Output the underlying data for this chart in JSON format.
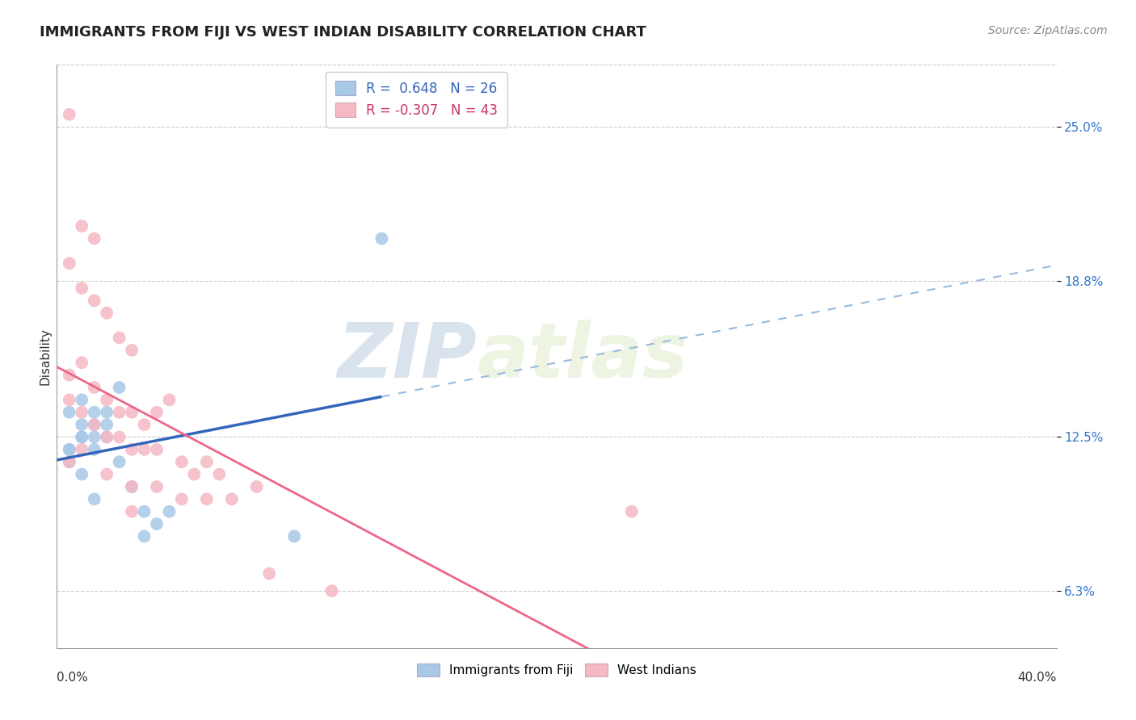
{
  "title": "IMMIGRANTS FROM FIJI VS WEST INDIAN DISABILITY CORRELATION CHART",
  "source": "Source: ZipAtlas.com",
  "ylabel": "Disability",
  "xlim": [
    0.0,
    40.0
  ],
  "ylim": [
    4.0,
    27.5
  ],
  "yticks": [
    6.3,
    12.5,
    18.8,
    25.0
  ],
  "ytick_labels": [
    "6.3%",
    "12.5%",
    "18.8%",
    "25.0%"
  ],
  "grid_color": "#cccccc",
  "background_color": "#ffffff",
  "fiji_color": "#a8c8e8",
  "fiji_edge_color": "#6699cc",
  "westindian_color": "#f5b8c4",
  "westindian_edge_color": "#e87090",
  "fiji_line_color": "#3366bb",
  "fiji_dash_color": "#99bbdd",
  "westindian_line_color": "#ee6688",
  "fiji_R": "0.648",
  "fiji_N": "26",
  "westindian_R": "-0.307",
  "westindian_N": "43",
  "fiji_scatter_x": [
    1.0,
    1.5,
    2.0,
    2.5,
    0.5,
    1.0,
    1.5,
    0.5,
    1.0,
    1.5,
    2.0,
    0.5,
    1.0,
    0.5,
    1.0,
    1.5,
    2.0,
    2.5,
    1.5,
    3.0,
    3.5,
    4.0,
    4.5,
    3.5,
    9.5,
    13.0
  ],
  "fiji_scatter_y": [
    12.5,
    13.0,
    13.5,
    14.5,
    12.0,
    12.5,
    12.0,
    13.5,
    14.0,
    12.5,
    13.0,
    11.5,
    11.0,
    12.0,
    13.0,
    13.5,
    12.5,
    11.5,
    10.0,
    10.5,
    9.5,
    9.0,
    9.5,
    8.5,
    8.5,
    20.5
  ],
  "westindian_scatter_x": [
    0.5,
    1.0,
    1.5,
    0.5,
    1.0,
    1.5,
    2.0,
    2.5,
    3.0,
    0.5,
    1.0,
    1.5,
    2.0,
    2.5,
    3.0,
    3.5,
    4.0,
    4.5,
    0.5,
    1.0,
    1.5,
    2.0,
    2.5,
    3.0,
    3.5,
    4.0,
    5.0,
    5.5,
    6.0,
    6.5,
    0.5,
    1.0,
    2.0,
    3.0,
    4.0,
    5.0,
    6.0,
    7.0,
    8.0,
    23.0,
    3.0,
    8.5,
    11.0
  ],
  "westindian_scatter_y": [
    25.5,
    21.0,
    20.5,
    19.5,
    18.5,
    18.0,
    17.5,
    16.5,
    16.0,
    15.0,
    15.5,
    14.5,
    14.0,
    13.5,
    13.5,
    13.0,
    13.5,
    14.0,
    14.0,
    13.5,
    13.0,
    12.5,
    12.5,
    12.0,
    12.0,
    12.0,
    11.5,
    11.0,
    11.5,
    11.0,
    11.5,
    12.0,
    11.0,
    10.5,
    10.5,
    10.0,
    10.0,
    10.0,
    10.5,
    9.5,
    9.5,
    7.0,
    6.3
  ],
  "legend_fiji_label": "R =  0.648   N = 26",
  "legend_westindian_label": "R = -0.307   N = 43",
  "bottom_legend_fiji": "Immigrants from Fiji",
  "bottom_legend_westindian": "West Indians",
  "watermark_zip": "ZIP",
  "watermark_atlas": "atlas",
  "title_fontsize": 13,
  "tick_fontsize": 11,
  "axis_label_fontsize": 11,
  "legend_fontsize": 12,
  "source_fontsize": 10
}
